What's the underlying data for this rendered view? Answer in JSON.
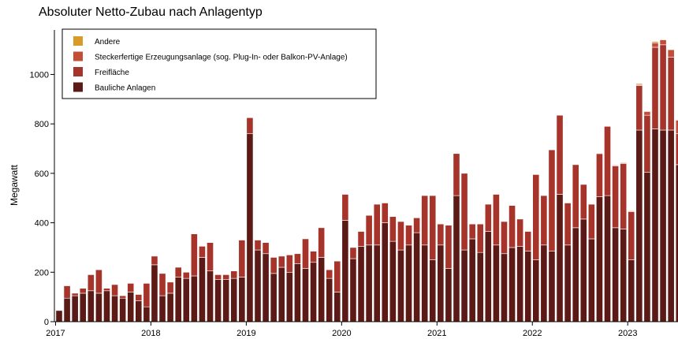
{
  "chart_data": {
    "type": "bar",
    "stacked": true,
    "title": "Absoluter Netto-Zubau nach Anlagentyp",
    "xlabel": "",
    "ylabel": "Megawatt",
    "ylim": [
      0,
      1180
    ],
    "yticks": [
      0,
      200,
      400,
      600,
      800,
      1000
    ],
    "xtick_labels": [
      "2017",
      "2018",
      "2019",
      "2020",
      "2021",
      "2022",
      "2023"
    ],
    "grid": false,
    "legend_position": "top-left",
    "categories": [
      "2017-01",
      "2017-02",
      "2017-03",
      "2017-04",
      "2017-05",
      "2017-06",
      "2017-07",
      "2017-08",
      "2017-09",
      "2017-10",
      "2017-11",
      "2017-12",
      "2018-01",
      "2018-02",
      "2018-03",
      "2018-04",
      "2018-05",
      "2018-06",
      "2018-07",
      "2018-08",
      "2018-09",
      "2018-10",
      "2018-11",
      "2018-12",
      "2019-01",
      "2019-02",
      "2019-03",
      "2019-04",
      "2019-05",
      "2019-06",
      "2019-07",
      "2019-08",
      "2019-09",
      "2019-10",
      "2019-11",
      "2019-12",
      "2020-01",
      "2020-02",
      "2020-03",
      "2020-04",
      "2020-05",
      "2020-06",
      "2020-07",
      "2020-08",
      "2020-09",
      "2020-10",
      "2020-11",
      "2020-12",
      "2021-01",
      "2021-02",
      "2021-03",
      "2021-04",
      "2021-05",
      "2021-06",
      "2021-07",
      "2021-08",
      "2021-09",
      "2021-10",
      "2021-11",
      "2021-12",
      "2022-01",
      "2022-02",
      "2022-03",
      "2022-04",
      "2022-05",
      "2022-06",
      "2022-07",
      "2022-08",
      "2022-09",
      "2022-10",
      "2022-11",
      "2022-12",
      "2023-01",
      "2023-02",
      "2023-03",
      "2023-04",
      "2023-05",
      "2023-06",
      "2023-07"
    ],
    "series": [
      {
        "name": "Bauliche Anlagen",
        "color": "#5c1a16",
        "values": [
          45,
          95,
          105,
          115,
          125,
          115,
          125,
          105,
          95,
          120,
          85,
          60,
          230,
          105,
          115,
          180,
          175,
          185,
          260,
          205,
          170,
          170,
          175,
          180,
          760,
          290,
          275,
          195,
          220,
          200,
          235,
          215,
          240,
          260,
          175,
          120,
          410,
          255,
          305,
          310,
          310,
          400,
          325,
          290,
          310,
          360,
          310,
          250,
          310,
          215,
          510,
          290,
          335,
          280,
          365,
          310,
          275,
          300,
          305,
          285,
          250,
          310,
          285,
          515,
          310,
          380,
          415,
          335,
          505,
          510,
          380,
          375,
          250,
          775,
          605,
          780,
          775,
          775,
          635
        ]
      },
      {
        "name": "Freifläche",
        "color": "#a6342a",
        "values": [
          0,
          50,
          10,
          20,
          65,
          95,
          10,
          45,
          10,
          35,
          25,
          95,
          35,
          90,
          45,
          40,
          25,
          170,
          45,
          115,
          20,
          20,
          30,
          150,
          65,
          40,
          45,
          65,
          45,
          70,
          40,
          120,
          45,
          120,
          35,
          125,
          105,
          45,
          60,
          120,
          165,
          80,
          100,
          115,
          80,
          60,
          200,
          260,
          85,
          175,
          170,
          310,
          60,
          115,
          110,
          205,
          130,
          170,
          110,
          80,
          345,
          200,
          410,
          320,
          170,
          255,
          140,
          140,
          175,
          280,
          250,
          265,
          195,
          180,
          230,
          330,
          345,
          295,
          125
        ]
      },
      {
        "name": "Steckerfertige Erzeugungsanlage (sog. Plug-In- oder Balkon-PV-Anlage)",
        "color": "#c44d37",
        "values": [
          0,
          0,
          0,
          0,
          0,
          0,
          0,
          0,
          0,
          0,
          0,
          0,
          0,
          0,
          0,
          0,
          0,
          0,
          0,
          0,
          0,
          0,
          0,
          0,
          0,
          0,
          0,
          0,
          0,
          0,
          0,
          0,
          0,
          0,
          0,
          0,
          0,
          0,
          0,
          0,
          0,
          0,
          0,
          0,
          0,
          0,
          0,
          0,
          0,
          0,
          0,
          0,
          0,
          0,
          0,
          0,
          0,
          0,
          0,
          0,
          0,
          0,
          0,
          0,
          0,
          0,
          0,
          0,
          0,
          0,
          3,
          3,
          3,
          4,
          15,
          18,
          20,
          30,
          55
        ]
      },
      {
        "name": "Andere",
        "color": "#d99a28",
        "values": [
          0,
          0,
          0,
          0,
          0,
          0,
          0,
          0,
          0,
          0,
          0,
          0,
          0,
          0,
          0,
          0,
          0,
          0,
          0,
          0,
          0,
          0,
          0,
          0,
          0,
          0,
          0,
          0,
          0,
          0,
          0,
          0,
          0,
          0,
          0,
          0,
          0,
          0,
          0,
          0,
          0,
          0,
          0,
          0,
          0,
          0,
          0,
          0,
          0,
          0,
          0,
          0,
          0,
          0,
          0,
          0,
          0,
          0,
          0,
          0,
          0,
          0,
          0,
          0,
          0,
          0,
          0,
          0,
          2,
          0,
          0,
          2,
          0,
          4,
          0,
          5,
          0,
          0,
          0
        ]
      }
    ]
  }
}
